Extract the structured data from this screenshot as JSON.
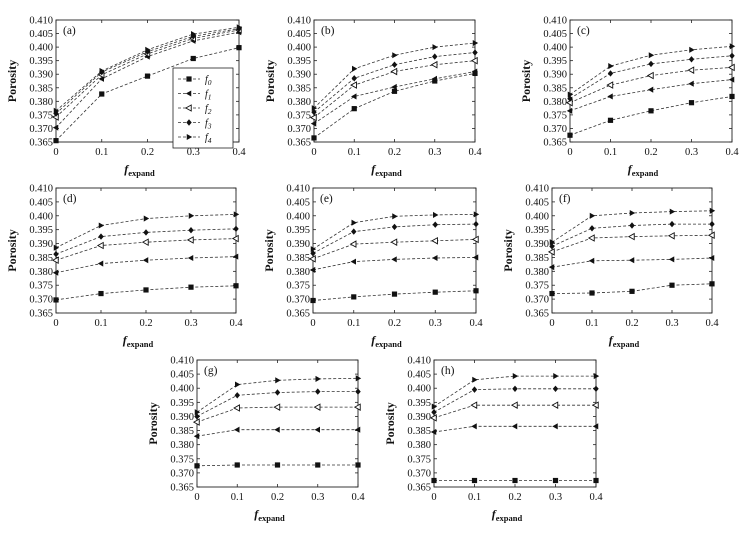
{
  "chart_data": [
    {
      "type": "line",
      "panel_label": "(a)",
      "xlabel": "f",
      "xlabel_sub": "expand",
      "ylabel": "Porosity",
      "x": [
        0,
        0.1,
        0.2,
        0.3,
        0.4
      ],
      "xticks": [
        "0",
        "0.1",
        "0.2",
        "0.3",
        "0.4"
      ],
      "yticks": [
        "0.365",
        "0.370",
        "0.375",
        "0.380",
        "0.385",
        "0.390",
        "0.395",
        "0.400",
        "0.405",
        "0.410"
      ],
      "xlim": [
        0,
        0.4
      ],
      "ylim": [
        0.365,
        0.41
      ],
      "legend": "top-right",
      "series": [
        {
          "name": "f0",
          "marker": "square",
          "values": [
            0.3655,
            0.3827,
            0.3893,
            0.3958,
            0.3998
          ]
        },
        {
          "name": "f1",
          "marker": "triangle-left",
          "values": [
            0.3703,
            0.3883,
            0.3965,
            0.4023,
            0.4055
          ]
        },
        {
          "name": "f2",
          "marker": "triangle-left-open",
          "values": [
            0.3742,
            0.3898,
            0.3975,
            0.4032,
            0.4063
          ]
        },
        {
          "name": "f3",
          "marker": "diamond",
          "values": [
            0.3755,
            0.3908,
            0.3983,
            0.404,
            0.4068
          ]
        },
        {
          "name": "f4",
          "marker": "triangle-right",
          "values": [
            0.3765,
            0.3912,
            0.399,
            0.4048,
            0.4073
          ]
        }
      ]
    },
    {
      "type": "line",
      "panel_label": "(b)",
      "xlabel": "f",
      "xlabel_sub": "expand",
      "ylabel": "Porosity",
      "x": [
        0,
        0.1,
        0.2,
        0.3,
        0.4
      ],
      "xticks": [
        "0",
        "0.1",
        "0.2",
        "0.3",
        "0.4"
      ],
      "yticks": [
        "0.365",
        "0.370",
        "0.375",
        "0.380",
        "0.385",
        "0.390",
        "0.395",
        "0.400",
        "0.405",
        "0.410"
      ],
      "xlim": [
        0,
        0.4
      ],
      "ylim": [
        0.365,
        0.41
      ],
      "series": [
        {
          "name": "f0",
          "marker": "square",
          "values": [
            0.3665,
            0.3773,
            0.3837,
            0.3875,
            0.3903
          ]
        },
        {
          "name": "f1",
          "marker": "triangle-left",
          "values": [
            0.3718,
            0.3818,
            0.3853,
            0.3883,
            0.391
          ]
        },
        {
          "name": "f2",
          "marker": "triangle-left-open",
          "values": [
            0.374,
            0.386,
            0.391,
            0.3935,
            0.395
          ]
        },
        {
          "name": "f3",
          "marker": "diamond",
          "values": [
            0.376,
            0.3885,
            0.3935,
            0.3965,
            0.398
          ]
        },
        {
          "name": "f4",
          "marker": "triangle-right",
          "values": [
            0.3775,
            0.392,
            0.397,
            0.4,
            0.4015
          ]
        }
      ]
    },
    {
      "type": "line",
      "panel_label": "(c)",
      "xlabel": "f",
      "xlabel_sub": "expand",
      "ylabel": "Porosity",
      "x": [
        0,
        0.1,
        0.2,
        0.3,
        0.4
      ],
      "xticks": [
        "0",
        "0.1",
        "0.2",
        "0.3",
        "0.4"
      ],
      "yticks": [
        "0.365",
        "0.370",
        "0.375",
        "0.380",
        "0.385",
        "0.390",
        "0.395",
        "0.400",
        "0.405",
        "0.410"
      ],
      "xlim": [
        0,
        0.4
      ],
      "ylim": [
        0.365,
        0.41
      ],
      "series": [
        {
          "name": "f0",
          "marker": "square",
          "values": [
            0.3675,
            0.373,
            0.3765,
            0.3795,
            0.3818
          ]
        },
        {
          "name": "f1",
          "marker": "triangle-left",
          "values": [
            0.3765,
            0.3818,
            0.3843,
            0.3865,
            0.388
          ]
        },
        {
          "name": "f2",
          "marker": "triangle-left-open",
          "values": [
            0.3795,
            0.386,
            0.3895,
            0.3915,
            0.3925
          ]
        },
        {
          "name": "f3",
          "marker": "diamond",
          "values": [
            0.381,
            0.3903,
            0.3938,
            0.3955,
            0.3968
          ]
        },
        {
          "name": "f4",
          "marker": "triangle-right",
          "values": [
            0.3825,
            0.393,
            0.397,
            0.399,
            0.4003
          ]
        }
      ]
    },
    {
      "type": "line",
      "panel_label": "(d)",
      "xlabel": "f",
      "xlabel_sub": "expand",
      "ylabel": "Porosity",
      "x": [
        0,
        0.1,
        0.2,
        0.3,
        0.4
      ],
      "xticks": [
        "0",
        "0.1",
        "0.2",
        "0.3",
        "0.4"
      ],
      "yticks": [
        "0.365",
        "0.370",
        "0.375",
        "0.380",
        "0.385",
        "0.390",
        "0.395",
        "0.400",
        "0.405",
        "0.410"
      ],
      "xlim": [
        0,
        0.4
      ],
      "ylim": [
        0.365,
        0.41
      ],
      "series": [
        {
          "name": "f0",
          "marker": "square",
          "values": [
            0.3697,
            0.372,
            0.3733,
            0.3743,
            0.3748
          ]
        },
        {
          "name": "f1",
          "marker": "triangle-left",
          "values": [
            0.3795,
            0.3828,
            0.384,
            0.3848,
            0.3853
          ]
        },
        {
          "name": "f2",
          "marker": "triangle-left-open",
          "values": [
            0.384,
            0.3893,
            0.3905,
            0.3913,
            0.3918
          ]
        },
        {
          "name": "f3",
          "marker": "diamond",
          "values": [
            0.3862,
            0.3925,
            0.394,
            0.3948,
            0.3953
          ]
        },
        {
          "name": "f4",
          "marker": "triangle-right",
          "values": [
            0.3885,
            0.3965,
            0.399,
            0.4,
            0.4005
          ]
        }
      ]
    },
    {
      "type": "line",
      "panel_label": "(e)",
      "xlabel": "f",
      "xlabel_sub": "expand",
      "ylabel": "Porosity",
      "x": [
        0,
        0.1,
        0.2,
        0.3,
        0.4
      ],
      "xticks": [
        "0",
        "0.1",
        "0.2",
        "0.3",
        "0.4"
      ],
      "yticks": [
        "0.365",
        "0.370",
        "0.375",
        "0.380",
        "0.385",
        "0.390",
        "0.395",
        "0.400",
        "0.405",
        "0.410"
      ],
      "xlim": [
        0,
        0.4
      ],
      "ylim": [
        0.365,
        0.41
      ],
      "series": [
        {
          "name": "f0",
          "marker": "square",
          "values": [
            0.3695,
            0.3708,
            0.3718,
            0.3725,
            0.373
          ]
        },
        {
          "name": "f1",
          "marker": "triangle-left",
          "values": [
            0.3805,
            0.3835,
            0.3843,
            0.3848,
            0.385
          ]
        },
        {
          "name": "f2",
          "marker": "triangle-left-open",
          "values": [
            0.3845,
            0.3898,
            0.3905,
            0.391,
            0.3915
          ]
        },
        {
          "name": "f3",
          "marker": "diamond",
          "values": [
            0.3865,
            0.3943,
            0.396,
            0.3968,
            0.397
          ]
        },
        {
          "name": "f4",
          "marker": "triangle-right",
          "values": [
            0.388,
            0.3975,
            0.3998,
            0.4003,
            0.4005
          ]
        }
      ]
    },
    {
      "type": "line",
      "panel_label": "(f)",
      "xlabel": "f",
      "xlabel_sub": "expand",
      "ylabel": "Porosity",
      "x": [
        0,
        0.1,
        0.2,
        0.3,
        0.4
      ],
      "xticks": [
        "0",
        "0.1",
        "0.2",
        "0.3",
        "0.4"
      ],
      "yticks": [
        "0.365",
        "0.370",
        "0.375",
        "0.380",
        "0.385",
        "0.390",
        "0.395",
        "0.400",
        "0.405",
        "0.410"
      ],
      "xlim": [
        0,
        0.4
      ],
      "ylim": [
        0.365,
        0.41
      ],
      "series": [
        {
          "name": "f0",
          "marker": "square",
          "values": [
            0.372,
            0.3722,
            0.3728,
            0.375,
            0.3755
          ]
        },
        {
          "name": "f1",
          "marker": "triangle-left",
          "values": [
            0.3815,
            0.3838,
            0.384,
            0.3843,
            0.3848
          ]
        },
        {
          "name": "f2",
          "marker": "triangle-left-open",
          "values": [
            0.387,
            0.392,
            0.3925,
            0.3928,
            0.393
          ]
        },
        {
          "name": "f3",
          "marker": "diamond",
          "values": [
            0.389,
            0.3955,
            0.3965,
            0.397,
            0.397
          ]
        },
        {
          "name": "f4",
          "marker": "triangle-right",
          "values": [
            0.3905,
            0.4,
            0.401,
            0.4015,
            0.4018
          ]
        }
      ]
    },
    {
      "type": "line",
      "panel_label": "(g)",
      "xlabel": "f",
      "xlabel_sub": "expand",
      "ylabel": "Porosity",
      "x": [
        0,
        0.1,
        0.2,
        0.3,
        0.4
      ],
      "xticks": [
        "0",
        "0.1",
        "0.2",
        "0.3",
        "0.4"
      ],
      "yticks": [
        "0.365",
        "0.370",
        "0.375",
        "0.380",
        "0.385",
        "0.390",
        "0.395",
        "0.400",
        "0.405",
        "0.410"
      ],
      "xlim": [
        0,
        0.4
      ],
      "ylim": [
        0.365,
        0.41
      ],
      "series": [
        {
          "name": "f0",
          "marker": "square",
          "values": [
            0.3725,
            0.3728,
            0.3728,
            0.3728,
            0.3728
          ]
        },
        {
          "name": "f1",
          "marker": "triangle-left",
          "values": [
            0.383,
            0.3853,
            0.3853,
            0.3853,
            0.3853
          ]
        },
        {
          "name": "f2",
          "marker": "triangle-left-open",
          "values": [
            0.388,
            0.393,
            0.3933,
            0.3933,
            0.3933
          ]
        },
        {
          "name": "f3",
          "marker": "diamond",
          "values": [
            0.39,
            0.3975,
            0.3985,
            0.3988,
            0.3988
          ]
        },
        {
          "name": "f4",
          "marker": "triangle-right",
          "values": [
            0.3915,
            0.4013,
            0.4028,
            0.4033,
            0.4035
          ]
        }
      ]
    },
    {
      "type": "line",
      "panel_label": "(h)",
      "xlabel": "f",
      "xlabel_sub": "expand",
      "ylabel": "Porosity",
      "x": [
        0,
        0.1,
        0.2,
        0.3,
        0.4
      ],
      "xticks": [
        "0",
        "0.1",
        "0.2",
        "0.3",
        "0.4"
      ],
      "yticks": [
        "0.365",
        "0.370",
        "0.375",
        "0.380",
        "0.385",
        "0.390",
        "0.395",
        "0.400",
        "0.405",
        "0.410"
      ],
      "xlim": [
        0,
        0.4
      ],
      "ylim": [
        0.365,
        0.41
      ],
      "series": [
        {
          "name": "f0",
          "marker": "square",
          "values": [
            0.3673,
            0.3673,
            0.3673,
            0.3673,
            0.3673
          ]
        },
        {
          "name": "f1",
          "marker": "triangle-left",
          "values": [
            0.3845,
            0.3865,
            0.3865,
            0.3865,
            0.3865
          ]
        },
        {
          "name": "f2",
          "marker": "triangle-left-open",
          "values": [
            0.3895,
            0.394,
            0.394,
            0.394,
            0.394
          ]
        },
        {
          "name": "f3",
          "marker": "diamond",
          "values": [
            0.3915,
            0.3995,
            0.3998,
            0.3998,
            0.3998
          ]
        },
        {
          "name": "f4",
          "marker": "triangle-right",
          "values": [
            0.3935,
            0.403,
            0.4043,
            0.4043,
            0.4043
          ]
        }
      ]
    }
  ],
  "legend_entries": [
    {
      "base": "f",
      "sub": "0"
    },
    {
      "base": "f",
      "sub": "1"
    },
    {
      "base": "f",
      "sub": "2"
    },
    {
      "base": "f",
      "sub": "3"
    },
    {
      "base": "f",
      "sub": "4"
    }
  ]
}
